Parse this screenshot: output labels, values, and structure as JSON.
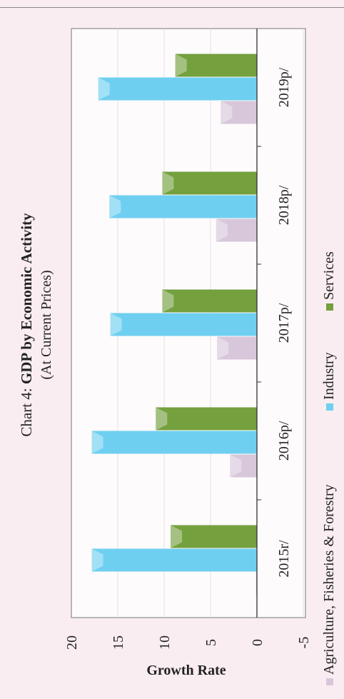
{
  "chart_data": {
    "type": "bar",
    "orientation": "horizontal-rotated",
    "title_prefix": "Chart 4: ",
    "title_bold": "GDP by Economic Activity",
    "subtitle": "(At Current Prices)",
    "xlabel": "",
    "ylabel": "Growth Rate",
    "ylim": [
      -5,
      20
    ],
    "ticks": [
      "20",
      "15",
      "10",
      "5",
      "0",
      "-5"
    ],
    "categories": [
      "2015r/",
      "2016p/",
      "2017p/",
      "2018p/",
      "2019p/"
    ],
    "series": [
      {
        "name": "Agriculture, Fisheries & Forestry",
        "values": [
          0.1,
          2.9,
          4.3,
          4.4,
          3.9
        ],
        "color": "#d8c7da"
      },
      {
        "name": "Industry",
        "values": [
          17.8,
          17.8,
          15.8,
          15.9,
          17.1
        ],
        "color": "#6fcff0"
      },
      {
        "name": "Services",
        "values": [
          9.3,
          10.9,
          10.2,
          10.2,
          8.8
        ],
        "color": "#74a03e"
      }
    ],
    "grid": true,
    "legend_position": "bottom"
  }
}
